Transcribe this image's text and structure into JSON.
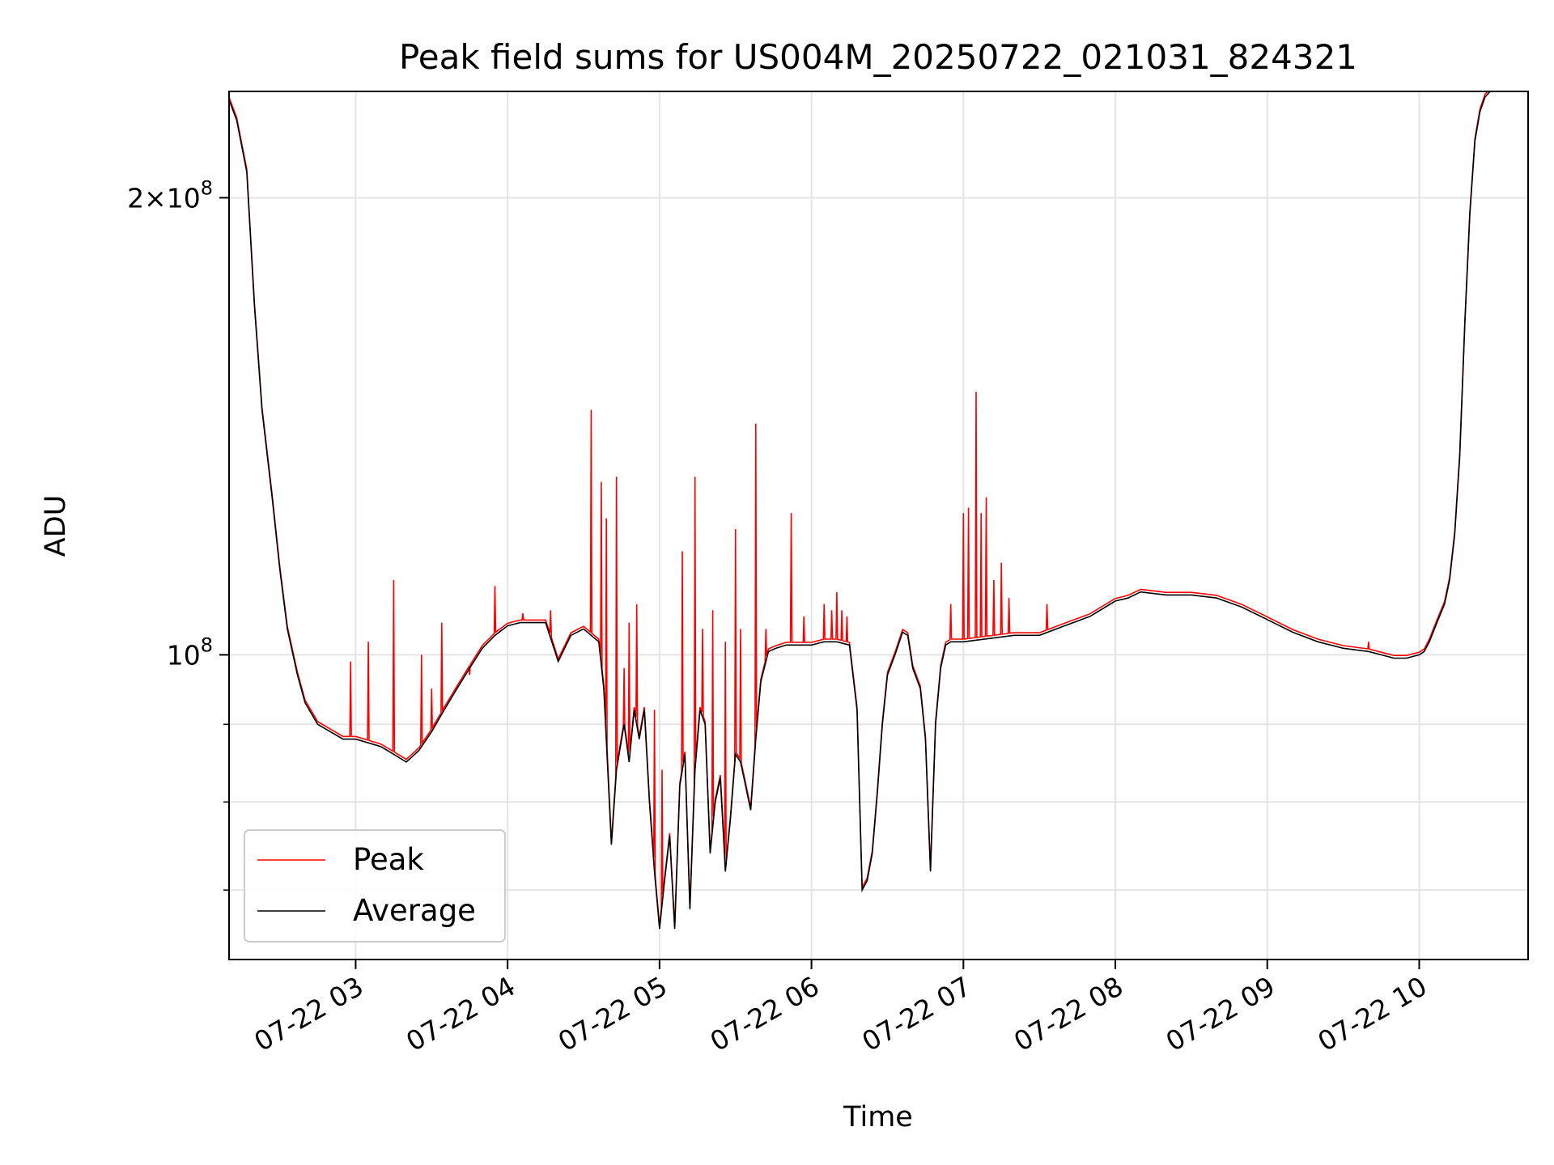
{
  "chart_data": {
    "type": "line",
    "title": "Peak field sums for US004M_20250722_021031_824321",
    "xlabel": "Time",
    "ylabel": "ADU",
    "y_scale": "log",
    "grid": true,
    "legend_position": "lower-left",
    "xlim": [
      "2025-07-22T02:10",
      "2025-07-22T10:43"
    ],
    "ylim": [
      63000000,
      235000000
    ],
    "x_ticks": [
      "07-22 03",
      "07-22 04",
      "07-22 05",
      "07-22 06",
      "07-22 07",
      "07-22 08",
      "07-22 09",
      "07-22 10"
    ],
    "y_ticks": [
      {
        "value": 100000000,
        "base": "10",
        "exp": "8",
        "prefix": ""
      },
      {
        "value": 200000000,
        "base": "10",
        "exp": "8",
        "prefix": "2×"
      }
    ],
    "y_minor_ticks": [
      70000000,
      80000000,
      90000000
    ],
    "series": [
      {
        "name": "Average",
        "color": "#000000",
        "x": [
          "02:10",
          "02:13",
          "02:17",
          "02:20",
          "02:23",
          "02:27",
          "02:30",
          "02:33",
          "02:37",
          "02:40",
          "02:45",
          "02:50",
          "02:55",
          "03:00",
          "03:05",
          "03:10",
          "03:15",
          "03:20",
          "03:25",
          "03:30",
          "03:35",
          "03:40",
          "03:45",
          "03:50",
          "03:55",
          "04:00",
          "04:05",
          "04:10",
          "04:15",
          "04:20",
          "04:25",
          "04:30",
          "04:33",
          "04:36",
          "04:38",
          "04:41",
          "04:43",
          "04:46",
          "04:48",
          "04:50",
          "04:52",
          "04:54",
          "04:56",
          "04:58",
          "05:00",
          "05:02",
          "05:04",
          "05:06",
          "05:08",
          "05:10",
          "05:12",
          "05:14",
          "05:16",
          "05:18",
          "05:20",
          "05:22",
          "05:24",
          "05:26",
          "05:28",
          "05:30",
          "05:32",
          "05:34",
          "05:36",
          "05:38",
          "05:40",
          "05:43",
          "05:46",
          "05:50",
          "05:55",
          "06:00",
          "06:05",
          "06:10",
          "06:15",
          "06:18",
          "06:20",
          "06:22",
          "06:24",
          "06:26",
          "06:28",
          "06:30",
          "06:33",
          "06:36",
          "06:38",
          "06:40",
          "06:43",
          "06:45",
          "06:47",
          "06:49",
          "06:51",
          "06:53",
          "06:55",
          "07:00",
          "07:10",
          "07:20",
          "07:30",
          "07:40",
          "07:50",
          "08:00",
          "08:05",
          "08:10",
          "08:20",
          "08:30",
          "08:40",
          "08:50",
          "09:00",
          "09:10",
          "09:20",
          "09:30",
          "09:40",
          "09:45",
          "09:50",
          "09:55",
          "10:00",
          "10:02",
          "10:04",
          "10:06",
          "10:08",
          "10:10",
          "10:12",
          "10:14",
          "10:16",
          "10:18",
          "10:20",
          "10:22",
          "10:24",
          "10:26",
          "10:28",
          "10:30",
          "10:35",
          "10:43"
        ],
        "y": [
          232000000,
          225000000,
          208000000,
          170000000,
          145000000,
          127000000,
          114000000,
          104000000,
          97000000,
          93000000,
          90000000,
          89000000,
          88000000,
          88000000,
          87500000,
          87000000,
          86000000,
          85000000,
          86500000,
          89000000,
          92000000,
          95000000,
          98000000,
          101000000,
          103000000,
          104500000,
          105000000,
          105000000,
          105000000,
          99000000,
          103000000,
          104000000,
          103000000,
          102000000,
          95000000,
          75000000,
          84000000,
          90000000,
          85000000,
          92000000,
          88000000,
          92000000,
          80000000,
          72000000,
          66000000,
          71000000,
          76000000,
          66000000,
          82000000,
          86000000,
          68000000,
          84000000,
          92000000,
          90000000,
          74000000,
          80000000,
          83000000,
          72000000,
          78000000,
          86000000,
          85000000,
          82000000,
          79000000,
          88000000,
          96000000,
          100500000,
          101000000,
          101500000,
          101500000,
          101500000,
          102000000,
          102000000,
          101500000,
          92000000,
          70000000,
          71000000,
          74000000,
          81000000,
          90000000,
          97000000,
          100000000,
          103500000,
          103000000,
          98000000,
          95000000,
          88000000,
          72000000,
          90000000,
          98000000,
          101500000,
          102000000,
          102000000,
          102500000,
          103000000,
          103000000,
          104500000,
          106000000,
          108500000,
          109000000,
          110000000,
          109500000,
          109500000,
          109000000,
          107500000,
          105500000,
          103500000,
          102000000,
          101000000,
          100500000,
          100000000,
          99500000,
          99500000,
          100000000,
          100500000,
          102000000,
          104000000,
          106000000,
          108000000,
          112000000,
          120000000,
          135000000,
          165000000,
          195000000,
          218000000,
          228000000,
          233000000,
          235000000,
          235000000,
          235000000,
          235000000
        ]
      },
      {
        "name": "Peak",
        "color": "#ff0000",
        "x": [
          "02:58",
          "03:05",
          "03:15",
          "03:26",
          "03:30",
          "03:34",
          "03:45",
          "03:55",
          "04:06",
          "04:17",
          "04:33",
          "04:37",
          "04:39",
          "04:43",
          "04:46",
          "04:48",
          "04:51",
          "04:58",
          "05:01",
          "05:09",
          "05:14",
          "05:17",
          "05:21",
          "05:26",
          "05:30",
          "05:32",
          "05:38",
          "05:42",
          "05:52",
          "05:57",
          "06:05",
          "06:08",
          "06:10",
          "06:12",
          "06:14",
          "06:55",
          "07:00",
          "07:02",
          "07:05",
          "07:07",
          "07:09",
          "07:12",
          "07:15",
          "07:18",
          "07:33",
          "09:40"
        ],
        "y": [
          99000000,
          102000000,
          112000000,
          100000000,
          95000000,
          105000000,
          97000000,
          111000000,
          106500000,
          107000000,
          145000000,
          130000000,
          123000000,
          131000000,
          98000000,
          105000000,
          108000000,
          92000000,
          84000000,
          117000000,
          131000000,
          104000000,
          107000000,
          102000000,
          121000000,
          104000000,
          142000000,
          104000000,
          124000000,
          106000000,
          108000000,
          107000000,
          110000000,
          107000000,
          106000000,
          108000000,
          124000000,
          125000000,
          149000000,
          124000000,
          127000000,
          112000000,
          115000000,
          109000000,
          108000000,
          102000000
        ]
      }
    ]
  }
}
